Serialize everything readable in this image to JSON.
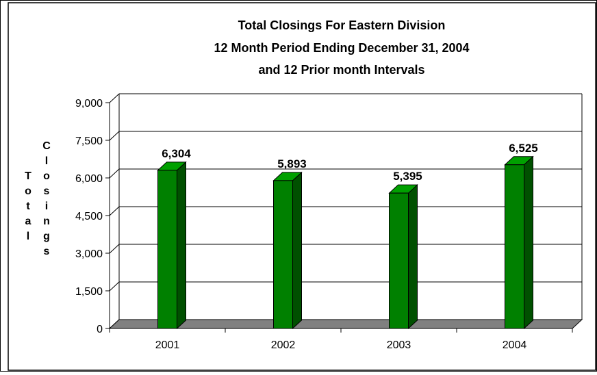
{
  "chart_data": {
    "type": "bar",
    "title_lines": [
      "Total Closings For Eastern Division",
      "12 Month Period Ending December 31, 2004",
      "and 12 Prior month Intervals"
    ],
    "ylabel_words": [
      "Total",
      "Closings"
    ],
    "xlabel": "",
    "categories": [
      "2001",
      "2002",
      "2003",
      "2004"
    ],
    "values": [
      6304,
      5893,
      5395,
      6525
    ],
    "data_labels": [
      "6,304",
      "5,893",
      "5,395",
      "6,525"
    ],
    "ylim": [
      0,
      9000
    ],
    "yticks": [
      0,
      1500,
      3000,
      4500,
      6000,
      7500,
      9000
    ],
    "ytick_labels": [
      "0",
      "1,500",
      "3,000",
      "4,500",
      "6,000",
      "7,500",
      "9,000"
    ],
    "grid": true,
    "legend": "none",
    "colors": {
      "bar_front": "#008000",
      "bar_side": "#005000",
      "bar_top": "#00a000",
      "floor": "#808080",
      "grid": "#000000"
    }
  }
}
